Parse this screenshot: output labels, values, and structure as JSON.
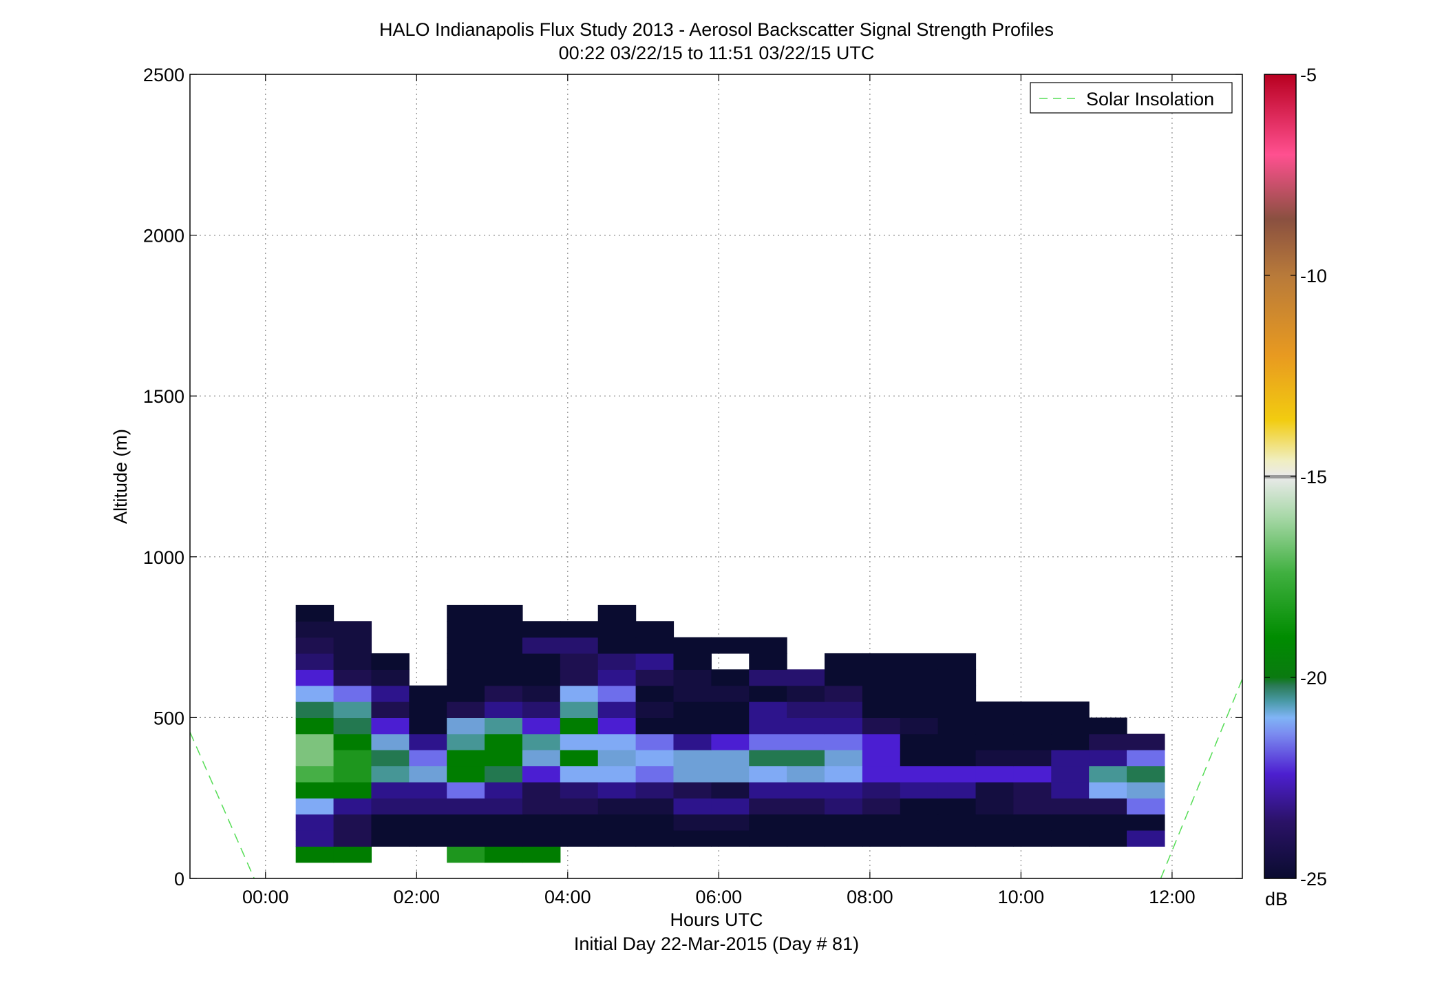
{
  "chart_data": {
    "type": "heatmap",
    "title": "HALO Indianapolis Flux Study 2013 - Aerosol Backscatter Signal Strength Profiles",
    "subtitle": "00:22 03/22/15 to 11:51 03/22/15  UTC",
    "xlabel": "Hours UTC",
    "xlabel2": "Initial Day 22-Mar-2015 (Day # 81)",
    "ylabel": "Altitude (m)",
    "xlim": [
      -1,
      12.93
    ],
    "ylim": [
      0,
      2500
    ],
    "x_ticks": [
      {
        "value": 0,
        "label": "00:00"
      },
      {
        "value": 2,
        "label": "02:00"
      },
      {
        "value": 4,
        "label": "04:00"
      },
      {
        "value": 6,
        "label": "06:00"
      },
      {
        "value": 8,
        "label": "08:00"
      },
      {
        "value": 10,
        "label": "10:00"
      },
      {
        "value": 12,
        "label": "12:00"
      }
    ],
    "y_ticks": [
      {
        "value": 0,
        "label": "0"
      },
      {
        "value": 500,
        "label": "500"
      },
      {
        "value": 1000,
        "label": "1000"
      },
      {
        "value": 1500,
        "label": "1500"
      },
      {
        "value": 2000,
        "label": "2000"
      },
      {
        "value": 2500,
        "label": "2500"
      }
    ],
    "grid": true,
    "colorbar": {
      "label": "dB",
      "range": [
        -25,
        -5
      ],
      "ticks": [
        {
          "value": -5,
          "label": "-5"
        },
        {
          "value": -10,
          "label": "-10"
        },
        {
          "value": -15,
          "label": "-15"
        },
        {
          "value": -20,
          "label": "-20"
        },
        {
          "value": -25,
          "label": "-25"
        }
      ]
    },
    "legend": {
      "placement": "top-right",
      "entries": [
        {
          "name": "Solar Insolation",
          "color": "#55dd55",
          "style": "dashed"
        }
      ]
    },
    "solar_insolation": [
      {
        "x": [
          -1,
          -0.15
        ],
        "y": [
          455,
          0
        ]
      },
      {
        "x": [
          11.85,
          12.93
        ],
        "y": [
          0,
          620
        ]
      }
    ],
    "time_bins_start": [
      0.4,
      0.9,
      1.4,
      1.9,
      2.4,
      2.9,
      3.4,
      3.9,
      4.4,
      4.9,
      5.4,
      5.9,
      6.4,
      6.9,
      7.4,
      7.9,
      8.4,
      8.9,
      9.4,
      9.9,
      10.4,
      10.9,
      11.4
    ],
    "time_bin_width": 0.5,
    "altitude_bins_bottom": [
      50,
      100,
      150,
      200,
      250,
      300,
      350,
      400,
      450,
      500,
      550,
      600,
      650,
      700,
      750,
      800
    ],
    "altitude_bin_height": 50,
    "values_db": [
      [
        -19.5,
        -19.5,
        null,
        null,
        -19,
        -19.5,
        -19.5,
        null,
        null,
        null,
        null,
        null,
        null,
        null,
        null,
        null,
        null,
        null,
        null,
        null,
        null,
        null,
        null
      ],
      [
        -23,
        -24,
        -25,
        -25,
        -25,
        -25,
        -25,
        -25,
        -25,
        -25,
        -25,
        -25,
        -25,
        -25,
        -25,
        -25,
        -25,
        -25,
        -25,
        -25,
        -25,
        -25,
        -23
      ],
      [
        -23,
        -24,
        -25,
        -25,
        -25,
        -25,
        -25,
        -25,
        -25,
        -25,
        -24.5,
        -24.5,
        -25,
        -25,
        -25,
        -25,
        -25,
        -25,
        -25,
        -25,
        -25,
        -25,
        -25
      ],
      [
        -21.5,
        -23,
        -23.5,
        -23.5,
        -23.5,
        -23.5,
        -24,
        -24,
        -24.5,
        -24.5,
        -23,
        -23,
        -24,
        -24,
        -23.5,
        -24,
        -25,
        -25,
        -24.5,
        -24,
        -24,
        -24,
        -22
      ],
      [
        -19.5,
        -19.5,
        -23,
        -23,
        -22,
        -23,
        -24,
        -23.5,
        -23,
        -23.5,
        -24,
        -24.5,
        -23,
        -23,
        -23,
        -23.5,
        -23,
        -23,
        -24.5,
        -24,
        -23,
        -21.5,
        -21
      ],
      [
        -18,
        -19,
        -20.5,
        -21,
        -19.5,
        -20,
        -22.5,
        -21.5,
        -21.5,
        -22,
        -21,
        -21,
        -21.5,
        -21,
        -21.5,
        -22.5,
        -22.5,
        -22.5,
        -22.5,
        -22.5,
        -23,
        -20.5,
        -20
      ],
      [
        -17.5,
        -19,
        -20,
        -22,
        -19.5,
        -19.5,
        -21,
        -19.5,
        -21,
        -21.5,
        -21,
        -21,
        -20,
        -20,
        -21,
        -22.5,
        -25,
        -25,
        -24.5,
        -24.5,
        -23,
        -23,
        -22
      ],
      [
        -17.5,
        -19.5,
        -21,
        -23,
        -20.5,
        -19.5,
        -20.5,
        -21.5,
        -21.5,
        -22,
        -23,
        -22.5,
        -22,
        -22,
        -22,
        -22.5,
        -25,
        -25,
        -25,
        -25,
        -25,
        -24,
        -24
      ],
      [
        -19.5,
        -20,
        -22.5,
        -25,
        -21,
        -20.5,
        -22.5,
        -19.5,
        -22.5,
        -25,
        -25,
        -25,
        -23,
        -23,
        -23,
        -24,
        -24.5,
        -25,
        -25,
        -25,
        -25,
        -25,
        null
      ],
      [
        -20,
        -20.5,
        -24,
        -25,
        -24,
        -23,
        -23.5,
        -20.5,
        -23,
        -24.5,
        -25,
        -25,
        -23,
        -23.5,
        -23.5,
        -25,
        -25,
        -25,
        -25,
        -25,
        -25,
        null,
        null
      ],
      [
        -21.5,
        -22,
        -23,
        -25,
        -25,
        -24,
        -24.5,
        -21.5,
        -22,
        -25,
        -24.5,
        -24.5,
        -25,
        -24.5,
        -24,
        -25,
        -25,
        -25,
        null,
        null,
        null,
        null,
        null
      ],
      [
        -22.5,
        -24,
        -24.5,
        null,
        -25,
        -25,
        -25,
        -24,
        -23,
        -24,
        -24.5,
        -25,
        -23.5,
        -23.5,
        -25,
        -25,
        -25,
        -25,
        null,
        null,
        null,
        null,
        null
      ],
      [
        -23.5,
        -24.5,
        -25,
        null,
        -25,
        -25,
        -25,
        -24,
        -23.5,
        -23,
        -25,
        null,
        -25,
        null,
        -25,
        -25,
        -25,
        -25,
        null,
        null,
        null,
        null,
        null
      ],
      [
        -24,
        -24.5,
        null,
        null,
        -25,
        -25,
        -23.5,
        -23.5,
        -25,
        -25,
        -25,
        -25,
        -25,
        null,
        null,
        null,
        null,
        null,
        null,
        null,
        null,
        null,
        null
      ],
      [
        -24.5,
        -24.5,
        null,
        null,
        -25,
        -25,
        -25,
        -25,
        -25,
        -25,
        null,
        null,
        null,
        null,
        null,
        null,
        null,
        null,
        null,
        null,
        null,
        null,
        null
      ],
      [
        -25,
        null,
        null,
        null,
        -25,
        -25,
        null,
        null,
        -25,
        null,
        null,
        null,
        null,
        null,
        null,
        null,
        null,
        null,
        null,
        null,
        null,
        null,
        null
      ]
    ]
  }
}
